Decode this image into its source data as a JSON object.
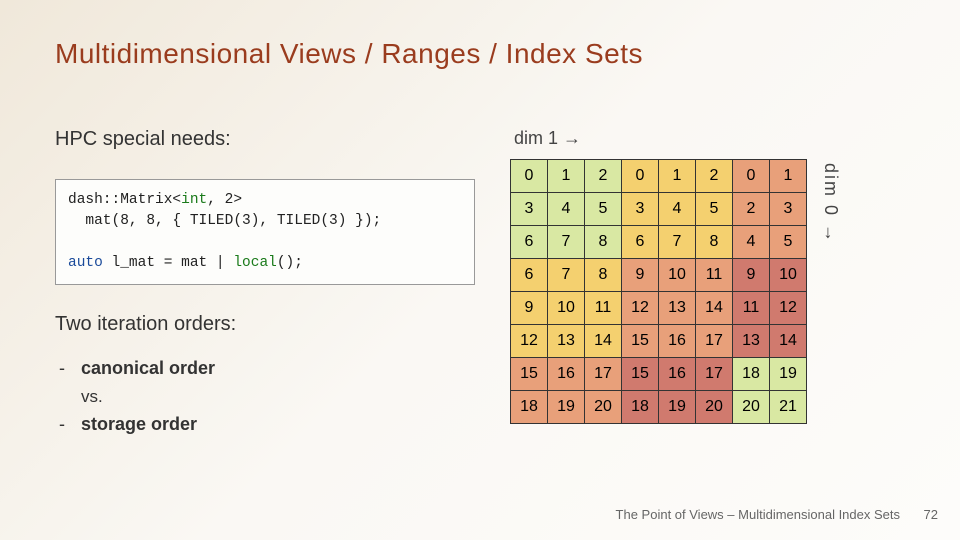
{
  "title": "Multidimensional Views / Ranges / Index Sets",
  "subhead": "HPC special needs:",
  "code": {
    "line1a": "dash::Matrix<",
    "line1b": "int",
    "line1c": ", 2>",
    "line2": "  mat(8, 8, { TILED(3), TILED(3) });",
    "blank": "",
    "line3a": "auto",
    "line3b": " l_mat = mat | ",
    "line3c": "local",
    "line3d": "();"
  },
  "iter_head": "Two iteration orders:",
  "bullets": {
    "b1": "canonical order",
    "vs": "vs.",
    "b2": "storage order"
  },
  "dim1_label": "dim 1 →",
  "dim0_label": "dim 0 →",
  "matrix": {
    "cols": 8,
    "rows": 8,
    "values": [
      [
        0,
        1,
        2,
        0,
        1,
        2,
        0,
        1
      ],
      [
        3,
        4,
        5,
        3,
        4,
        5,
        2,
        3
      ],
      [
        6,
        7,
        8,
        6,
        7,
        8,
        4,
        5
      ],
      [
        6,
        7,
        8,
        9,
        10,
        11,
        9,
        10
      ],
      [
        9,
        10,
        11,
        12,
        13,
        14,
        11,
        12
      ],
      [
        12,
        13,
        14,
        15,
        16,
        17,
        13,
        14
      ],
      [
        15,
        16,
        17,
        15,
        16,
        17,
        18,
        19
      ],
      [
        18,
        19,
        20,
        18,
        19,
        20,
        20,
        21
      ]
    ],
    "tile_colors": {
      "0": "#d9e8a3",
      "1": "#f4d06f",
      "2": "#e8a07a",
      "3": "#d07a6e"
    },
    "tile_map": [
      [
        0,
        0,
        0,
        1,
        1,
        1,
        2,
        2
      ],
      [
        0,
        0,
        0,
        1,
        1,
        1,
        2,
        2
      ],
      [
        0,
        0,
        0,
        1,
        1,
        1,
        2,
        2
      ],
      [
        1,
        1,
        1,
        2,
        2,
        2,
        3,
        3
      ],
      [
        1,
        1,
        1,
        2,
        2,
        2,
        3,
        3
      ],
      [
        1,
        1,
        1,
        2,
        2,
        2,
        3,
        3
      ],
      [
        2,
        2,
        2,
        3,
        3,
        3,
        0,
        0
      ],
      [
        2,
        2,
        2,
        3,
        3,
        3,
        0,
        0
      ]
    ]
  },
  "footer": "The Point of Views – Multidimensional Index Sets",
  "page": "72"
}
